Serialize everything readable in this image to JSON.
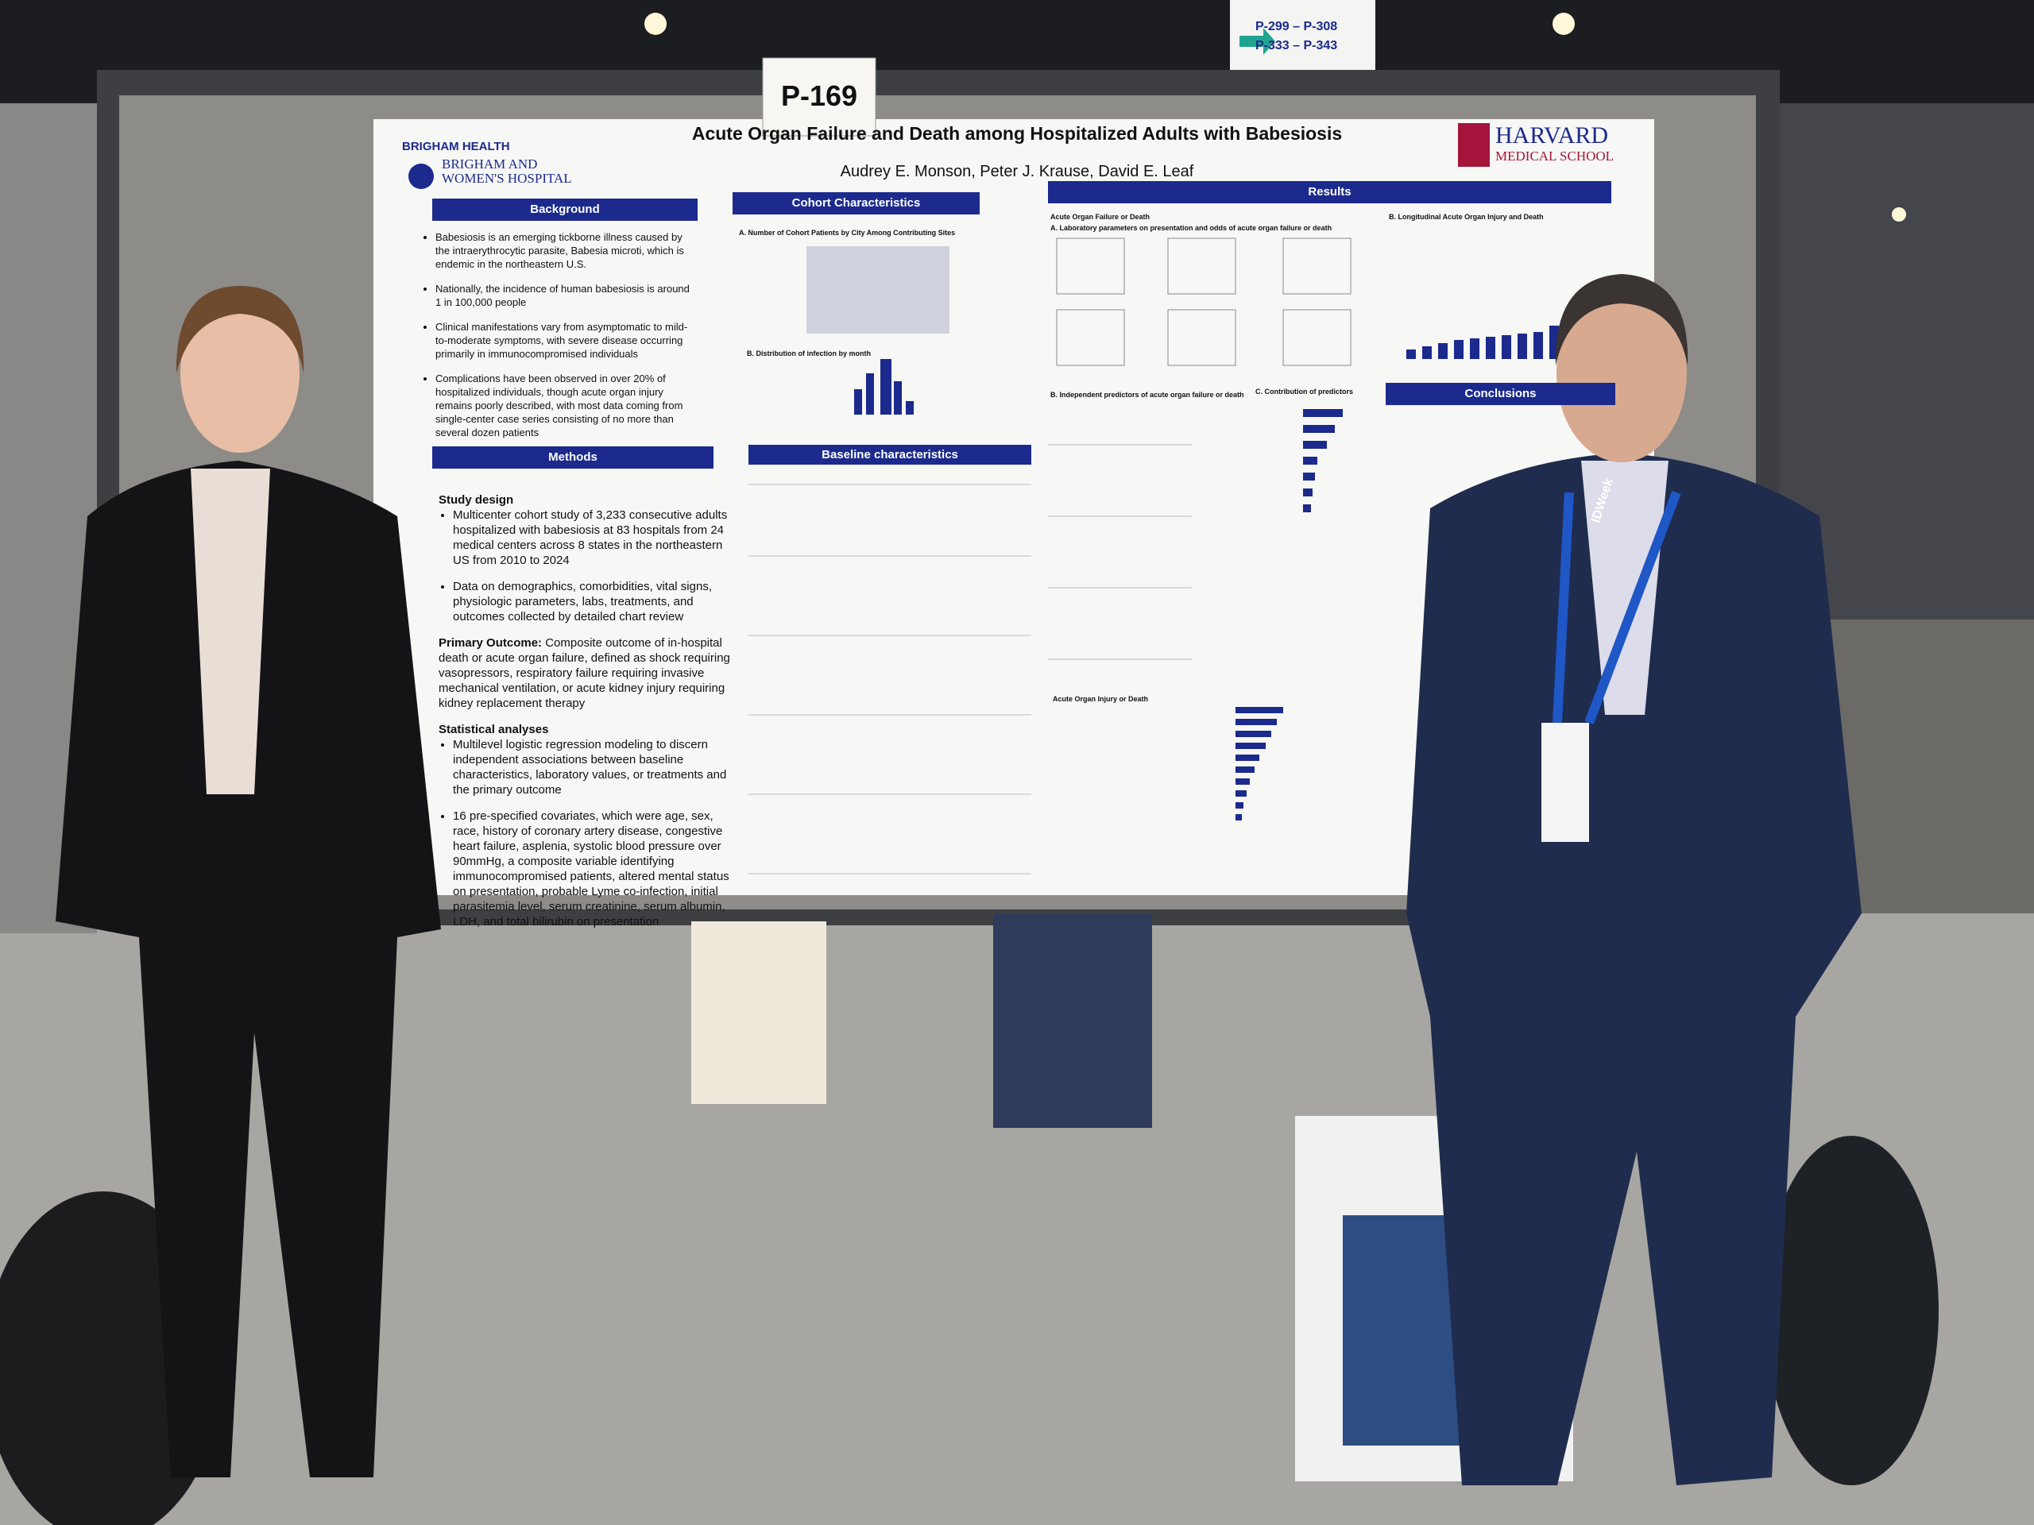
{
  "signs": {
    "aisle": [
      "P-299 – P-308",
      "P-333 – P-343"
    ],
    "poster_number": "P-169"
  },
  "poster": {
    "institution": {
      "group": "BRIGHAM HEALTH",
      "line_1": "BRIGHAM AND",
      "line_2": "WOMEN'S HOSPITAL"
    },
    "school": {
      "name": "HARVARD",
      "unit": "MEDICAL SCHOOL"
    },
    "title": "Acute Organ Failure and Death among Hospitalized Adults with Babesiosis",
    "authors": "Audrey E. Monson, Peter J. Krause, David E. Leaf",
    "background": {
      "heading": "Background",
      "bullets": [
        "Babesiosis is an emerging tickborne illness caused by the intraerythrocytic parasite, Babesia microti, which is endemic in the northeastern U.S.",
        "Nationally, the incidence of human babesiosis is around 1 in 100,000 people",
        "Clinical manifestations vary from asymptomatic to mild-to-moderate symptoms, with severe disease occurring primarily in immunocompromised individuals",
        "Complications have been observed in over 20% of hospitalized individuals, though acute organ injury remains poorly described, with most data coming from single-center case series consisting of no more than several dozen patients"
      ]
    },
    "methods": {
      "heading": "Methods",
      "study_design": {
        "heading": "Study design",
        "bullets": [
          "Multicenter cohort study of 3,233 consecutive adults hospitalized with babesiosis at 83 hospitals from 24 medical centers across 8 states in the northeastern US from 2010 to 2024",
          "Data on demographics, comorbidities, vital signs, physiologic parameters, labs, treatments, and outcomes collected by detailed chart review"
        ]
      },
      "outcome": {
        "heading": "Primary Outcome:",
        "text": "Composite outcome of in-hospital death or acute organ failure, defined as shock requiring vasopressors, respiratory failure requiring invasive mechanical ventilation, or acute kidney injury requiring kidney replacement therapy"
      },
      "statistics": {
        "heading": "Statistical analyses",
        "bullets": [
          "Multilevel logistic regression modeling to discern independent associations between baseline characteristics, laboratory values, or treatments and the primary outcome",
          "16 pre-specified covariates, which were age, sex, race, history of coronary artery disease, congestive heart failure, asplenia, systolic blood pressure over 90mmHg, a composite variable identifying immunocompromised patients, altered mental status on presentation, probable Lyme co-infection, initial parasitemia level, serum creatinine, serum albumin, LDH, and total bilirubin on presentation"
        ]
      }
    },
    "cohort": {
      "heading": "Cohort Characteristics",
      "map_title": "A. Number of Cohort Patients by City Among Contributing Sites",
      "month_title": "B. Distribution of infection by month"
    },
    "baseline": {
      "heading": "Baseline characteristics"
    },
    "results": {
      "heading": "Results",
      "subheading": "Acute Organ Failure or Death",
      "panel_a": "A. Laboratory parameters on presentation and odds of acute organ failure or death",
      "panel_b": "B. Independent predictors of acute organ failure or death",
      "panel_c": "C. Contribution of predictors",
      "panel_long": "B. Longitudinal Acute Organ Injury and Death",
      "panel_injury": "Acute Organ Injury or Death"
    },
    "conclusions": {
      "heading": "Conclusions"
    }
  },
  "badge": "IDWeek"
}
